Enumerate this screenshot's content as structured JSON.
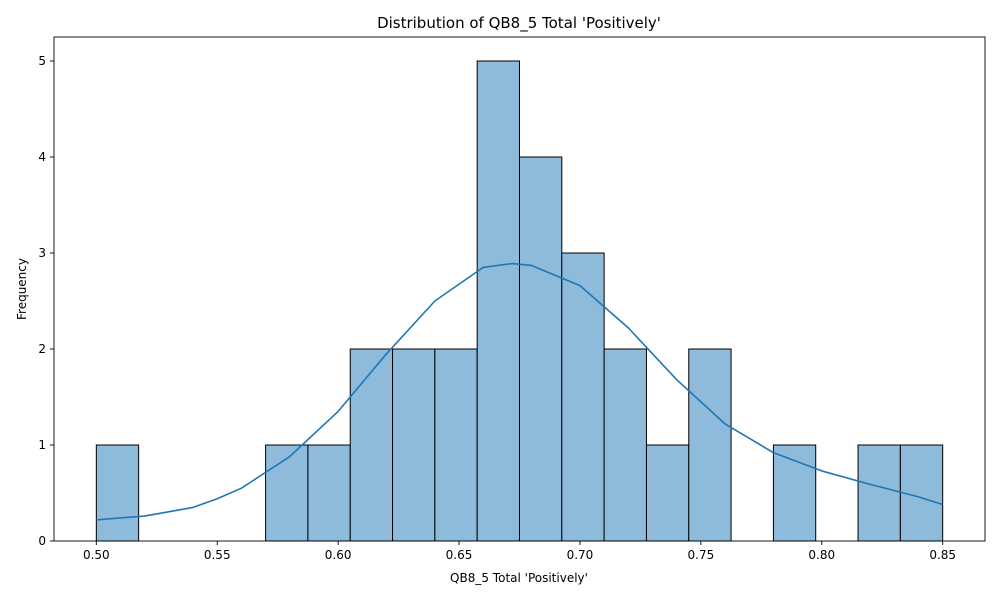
{
  "chart_data": {
    "type": "histogram",
    "title": "Distribution of QB8_5 Total 'Positively'",
    "xlabel": "QB8_5 Total 'Positively'",
    "ylabel": "Frequency",
    "xlim": [
      0.4825,
      0.8675
    ],
    "ylim": [
      0,
      5.25
    ],
    "xticks": [
      0.5,
      0.55,
      0.6,
      0.65,
      0.7,
      0.75,
      0.8,
      0.85
    ],
    "xtick_labels": [
      "0.50",
      "0.55",
      "0.60",
      "0.65",
      "0.70",
      "0.75",
      "0.80",
      "0.85"
    ],
    "yticks": [
      0,
      1,
      2,
      3,
      4,
      5
    ],
    "ytick_labels": [
      "0",
      "1",
      "2",
      "3",
      "4",
      "5"
    ],
    "bin_edges": [
      0.5,
      0.5175,
      0.535,
      0.5525,
      0.57,
      0.5875,
      0.605,
      0.6225,
      0.64,
      0.6575,
      0.675,
      0.6925,
      0.71,
      0.7275,
      0.745,
      0.7625,
      0.78,
      0.7975,
      0.815,
      0.8325,
      0.85
    ],
    "counts": [
      1,
      0,
      0,
      0,
      1,
      1,
      2,
      2,
      2,
      5,
      4,
      3,
      2,
      1,
      2,
      0,
      1,
      0,
      1,
      1
    ],
    "kde": {
      "x": [
        0.5,
        0.52,
        0.54,
        0.55,
        0.56,
        0.58,
        0.6,
        0.62,
        0.64,
        0.66,
        0.672,
        0.68,
        0.7,
        0.72,
        0.74,
        0.76,
        0.78,
        0.8,
        0.82,
        0.84,
        0.85
      ],
      "y": [
        0.22,
        0.26,
        0.35,
        0.44,
        0.55,
        0.88,
        1.35,
        1.95,
        2.5,
        2.85,
        2.89,
        2.87,
        2.66,
        2.22,
        1.68,
        1.22,
        0.92,
        0.73,
        0.59,
        0.46,
        0.38
      ]
    },
    "grid": false,
    "colors": {
      "bar_fill": "#8ebadc",
      "bar_edge": "#000000",
      "kde_line": "#1f77b4"
    }
  }
}
